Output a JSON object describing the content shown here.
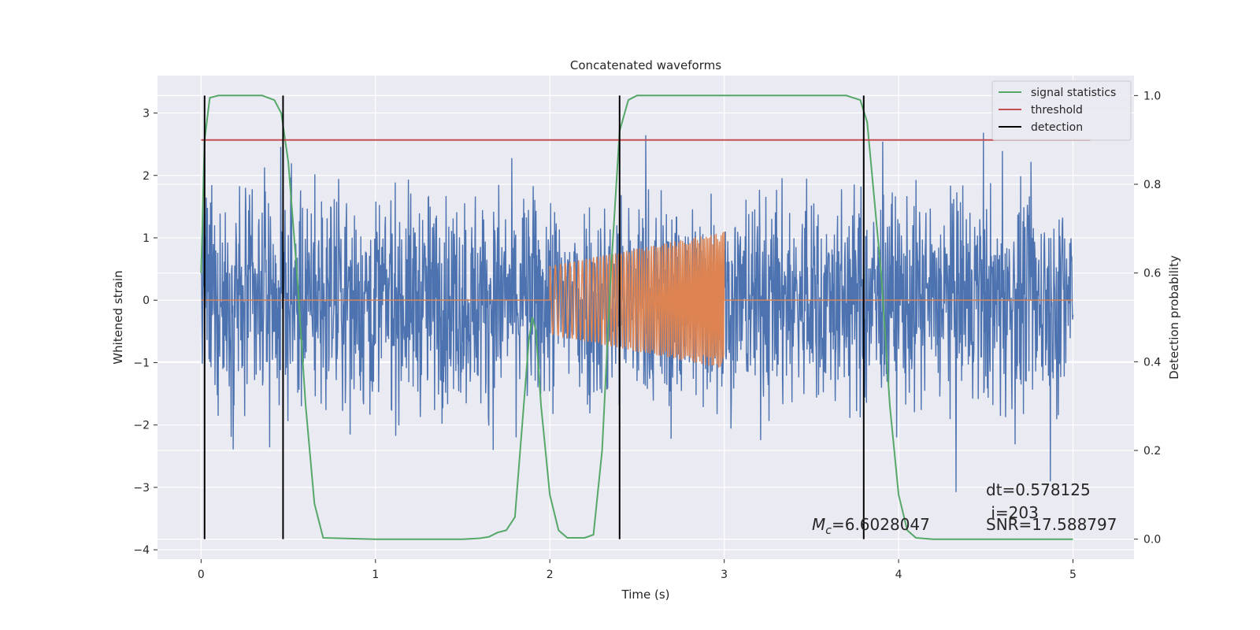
{
  "chart_data": {
    "type": "line",
    "title": "Concatenated waveforms",
    "xlabel": "Time (s)",
    "ylabel_left": "Whitened strain",
    "ylabel_right": "Detection probability",
    "xlim": [
      -0.25,
      5.35
    ],
    "ylim_left": [
      -4.15,
      3.6
    ],
    "ylim_right": [
      -0.045,
      1.045
    ],
    "x_ticks": [
      0,
      1,
      2,
      3,
      4,
      5
    ],
    "y_ticks_left": [
      -4,
      -3,
      -2,
      -1,
      0,
      1,
      2,
      3
    ],
    "y_ticks_right": [
      0.0,
      0.2,
      0.4,
      0.6,
      0.8,
      1.0
    ],
    "grid": true,
    "legend_position": "top-right",
    "colors": {
      "strain": "#4c72b0",
      "template": "#dd8452",
      "signal_statistics": "#55a868",
      "threshold": "#c44e52",
      "detection": "#000000",
      "background": "#eaeaf2"
    },
    "legend": [
      {
        "label": "signal statistics",
        "color": "#55a868"
      },
      {
        "label": "threshold",
        "color": "#c44e52"
      },
      {
        "label": "detection",
        "color": "#000000"
      }
    ],
    "series": [
      {
        "name": "signal statistics",
        "axis": "right",
        "x": [
          0.0,
          0.02,
          0.05,
          0.1,
          0.2,
          0.35,
          0.42,
          0.46,
          0.5,
          0.55,
          0.6,
          0.65,
          0.7,
          1.0,
          1.5,
          1.6,
          1.65,
          1.7,
          1.75,
          1.8,
          1.85,
          1.88,
          1.9,
          1.92,
          1.95,
          2.0,
          2.05,
          2.1,
          2.2,
          2.25,
          2.3,
          2.35,
          2.4,
          2.45,
          2.5,
          3.0,
          3.5,
          3.7,
          3.78,
          3.82,
          3.9,
          3.95,
          4.0,
          4.05,
          4.1,
          4.2,
          5.0
        ],
        "values": [
          0.6,
          0.9,
          0.995,
          1.0,
          1.0,
          1.0,
          0.99,
          0.96,
          0.85,
          0.6,
          0.3,
          0.08,
          0.003,
          0.0,
          0.0,
          0.002,
          0.005,
          0.015,
          0.02,
          0.05,
          0.3,
          0.45,
          0.5,
          0.47,
          0.3,
          0.1,
          0.02,
          0.003,
          0.003,
          0.01,
          0.2,
          0.6,
          0.92,
          0.99,
          1.0,
          1.0,
          1.0,
          1.0,
          0.99,
          0.94,
          0.6,
          0.3,
          0.1,
          0.02,
          0.003,
          0.0,
          0.0
        ]
      },
      {
        "name": "threshold",
        "axis": "right",
        "x": [
          0.0,
          5.1
        ],
        "values": [
          0.9,
          0.9
        ]
      }
    ],
    "detections_x": [
      0.02,
      0.47,
      2.4,
      3.8
    ],
    "strain_noise": {
      "x_range": [
        0.0,
        5.0
      ],
      "typical_range": [
        -2.4,
        2.4
      ],
      "extremes": [
        -3.7,
        3.3
      ]
    },
    "template_waveform": {
      "x_range": [
        2.0,
        3.0
      ],
      "amplitude_start": 0.55,
      "amplitude_end": 1.1
    },
    "annotations": {
      "mc_symbol": "M",
      "mc_subscript": "c",
      "mc_value": "=6.6028047",
      "dt": "dt=0.578125",
      "i": " i=203",
      "snr": "SNR=17.588797"
    }
  }
}
